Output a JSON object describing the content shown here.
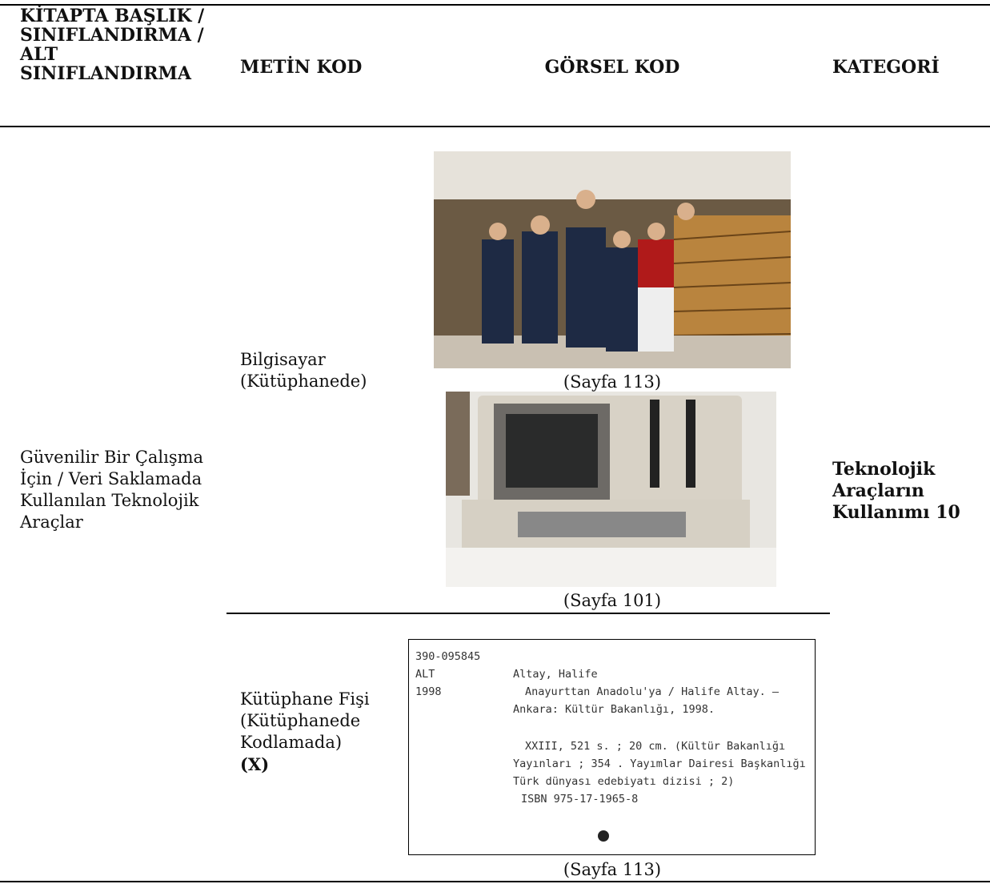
{
  "table": {
    "headers": [
      "KİTAPTA BAŞLIK / SINIFLANDIRMA / ALT SINIFLANDIRMA",
      "METİN KOD",
      "GÖRSEL KOD",
      "KATEGORİ"
    ],
    "rows": [
      {
        "title": "Güvenilir Bir Çalışma İçin / Veri Saklamada Kullanılan Teknolojik Araçlar",
        "category": "Teknolojik Araçların Kullanımı 10",
        "codes": [
          {
            "text_code": "Bilgisayar (Kütüphanede)",
            "images": [
              {
                "caption": "(Sayfa 113)"
              },
              {
                "caption": "(Sayfa 101)"
              }
            ]
          },
          {
            "text_code": "Kütüphane Fişi (Kütüphanede Kodlamada)",
            "marker": "(X)",
            "images": [
              {
                "caption": "(Sayfa 113)",
                "card": {
                  "left": [
                    "390-095845",
                    "ALT",
                    "1998"
                  ],
                  "right": [
                    "Altay, Halife",
                    "Anayurttan Anadolu'ya / Halife Altay. —",
                    "Ankara: Kültür Bakanlığı, 1998.",
                    "XXIII, 521 s. ; 20 cm. (Kültür Bakanlığı",
                    "Yayınları ; 354 . Yayımlar Dairesi Başkanlığı",
                    "Türk dünyası edebiyatı dizisi ; 2)",
                    "ISBN 975-17-1965-8"
                  ]
                }
              }
            ]
          }
        ]
      }
    ]
  }
}
